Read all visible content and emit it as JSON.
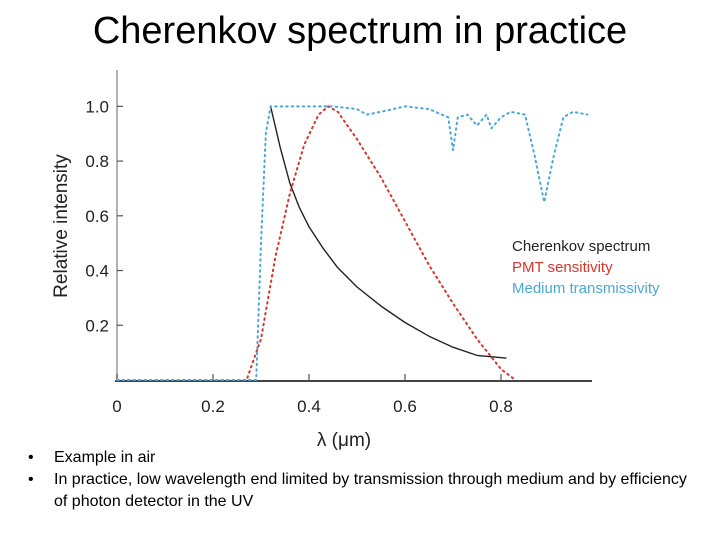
{
  "slide": {
    "title": "Cherenkov spectrum in practice",
    "bullets": [
      "Example in air",
      "In practice, low wavelength end limited by transmission through medium and by efficiency of photon detector in the UV"
    ]
  },
  "chart_data": {
    "type": "line",
    "xlabel": "λ (μm)",
    "ylabel": "Relative intensity",
    "xlim": [
      0,
      1.0
    ],
    "ylim": [
      0,
      1.1
    ],
    "xticks": [
      "0",
      "0.2",
      "0.4",
      "0.6",
      "0.8"
    ],
    "yticks": [
      "0.2",
      "0.4",
      "0.6",
      "0.8",
      "1.0"
    ],
    "legend_position": "right",
    "series": [
      {
        "name": "Cherenkov spectrum",
        "color": "#222222",
        "style": "solid",
        "x": [
          0.32,
          0.34,
          0.36,
          0.38,
          0.4,
          0.43,
          0.46,
          0.5,
          0.55,
          0.6,
          0.65,
          0.7,
          0.75,
          0.81
        ],
        "y": [
          1.0,
          0.85,
          0.72,
          0.63,
          0.56,
          0.48,
          0.41,
          0.34,
          0.27,
          0.21,
          0.16,
          0.12,
          0.09,
          0.08
        ]
      },
      {
        "name": "PMT sensitivity",
        "color": "#d9342b",
        "style": "dotted",
        "x": [
          0.0,
          0.27,
          0.3,
          0.33,
          0.36,
          0.39,
          0.42,
          0.44,
          0.46,
          0.5,
          0.55,
          0.6,
          0.65,
          0.7,
          0.75,
          0.8,
          0.83
        ],
        "y": [
          0.0,
          0.0,
          0.15,
          0.45,
          0.68,
          0.86,
          0.97,
          1.0,
          0.98,
          0.88,
          0.74,
          0.58,
          0.42,
          0.28,
          0.15,
          0.04,
          0.0
        ]
      },
      {
        "name": "Medium transmissivity",
        "color": "#4aa8d8",
        "style": "dotted",
        "x": [
          0.0,
          0.29,
          0.3,
          0.31,
          0.32,
          0.35,
          0.4,
          0.45,
          0.5,
          0.52,
          0.55,
          0.6,
          0.65,
          0.69,
          0.7,
          0.71,
          0.73,
          0.75,
          0.77,
          0.78,
          0.8,
          0.82,
          0.85,
          0.87,
          0.89,
          0.91,
          0.93,
          0.95,
          0.98
        ],
        "y": [
          0.0,
          0.0,
          0.5,
          0.9,
          1.0,
          1.0,
          1.0,
          1.0,
          0.99,
          0.97,
          0.98,
          1.0,
          0.99,
          0.96,
          0.84,
          0.96,
          0.97,
          0.93,
          0.97,
          0.92,
          0.96,
          0.98,
          0.97,
          0.82,
          0.65,
          0.82,
          0.96,
          0.98,
          0.97
        ]
      }
    ]
  }
}
